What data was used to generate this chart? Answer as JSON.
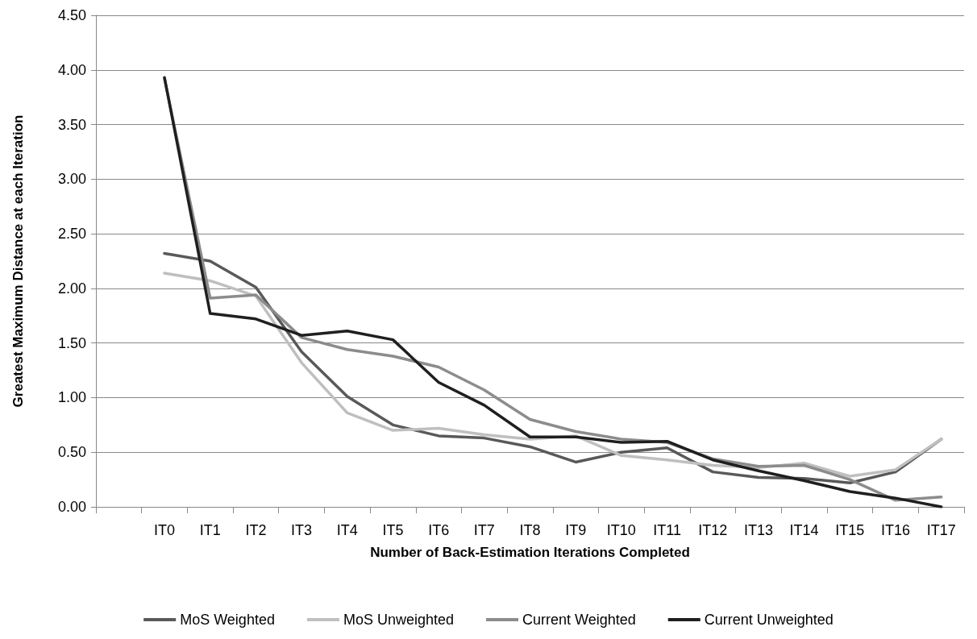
{
  "chart_data": {
    "type": "line",
    "xlabel": "Number of Back-Estimation Iterations Completed",
    "ylabel": "Greatest Maximum Distance at each Iteration",
    "categories": [
      null,
      "IT0",
      "IT1",
      "IT2",
      "IT3",
      "IT4",
      "IT5",
      "IT6",
      "IT7",
      "IT8",
      "IT9",
      "IT10",
      "IT11",
      "IT12",
      "IT13",
      "IT14",
      "IT15",
      "IT16",
      "IT17"
    ],
    "series": [
      {
        "name": "MoS Weighted",
        "color": "#595959",
        "values": [
          null,
          2.32,
          2.25,
          2.01,
          1.42,
          1.01,
          0.75,
          0.65,
          0.63,
          0.55,
          0.41,
          0.5,
          0.54,
          0.32,
          0.27,
          0.26,
          0.22,
          0.32,
          0.62
        ]
      },
      {
        "name": "MoS Unweighted",
        "color": "#bfbfbf",
        "values": [
          null,
          2.14,
          2.07,
          1.93,
          1.32,
          0.86,
          0.7,
          0.72,
          0.66,
          0.62,
          0.65,
          0.47,
          0.43,
          0.38,
          0.36,
          0.4,
          0.28,
          0.34,
          0.62
        ]
      },
      {
        "name": "Current Weighted",
        "color": "#8c8c8c",
        "values": [
          null,
          3.92,
          1.91,
          1.94,
          1.55,
          1.44,
          1.38,
          1.28,
          1.07,
          0.8,
          0.69,
          0.62,
          0.59,
          0.44,
          0.37,
          0.38,
          0.25,
          0.06,
          0.09
        ]
      },
      {
        "name": "Current Unweighted",
        "color": "#1f1f1f",
        "values": [
          null,
          3.93,
          1.77,
          1.72,
          1.57,
          1.61,
          1.53,
          1.14,
          0.93,
          0.64,
          0.64,
          0.59,
          0.6,
          0.43,
          0.33,
          0.24,
          0.14,
          0.08,
          0.0
        ]
      }
    ],
    "ylim": [
      0,
      4.5
    ],
    "yticks": [
      {
        "value": 0,
        "label": "0.00"
      },
      {
        "value": 0.5,
        "label": "0.50"
      },
      {
        "value": 1,
        "label": "1.00"
      },
      {
        "value": 1.5,
        "label": "1.50"
      },
      {
        "value": 2,
        "label": "2.00"
      },
      {
        "value": 2.5,
        "label": "2.50"
      },
      {
        "value": 3,
        "label": "3.00"
      },
      {
        "value": 3.5,
        "label": "3.50"
      },
      {
        "value": 4,
        "label": "4.00"
      },
      {
        "value": 4.5,
        "label": "4.50"
      }
    ],
    "grid": "y",
    "legend": "bottom",
    "marker": "none",
    "line_style": "solid"
  }
}
